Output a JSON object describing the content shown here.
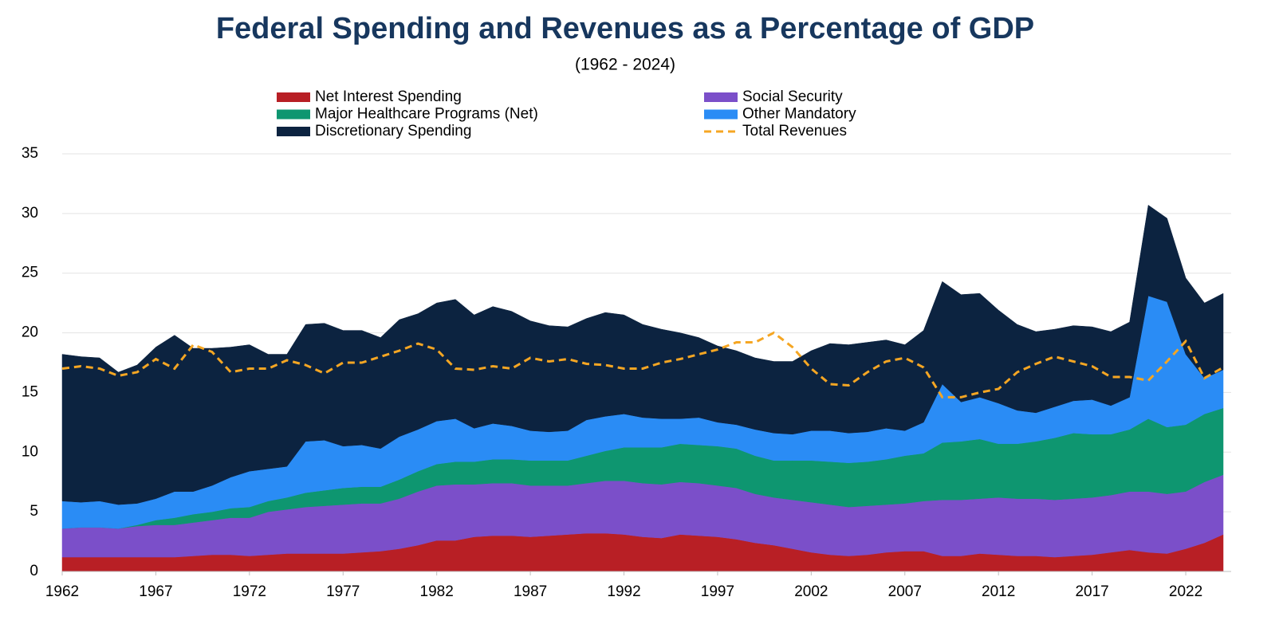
{
  "chart_data": {
    "type": "area",
    "stacked": true,
    "title": "Federal Spending and Revenues as a Percentage of GDP",
    "subtitle": "(1962 - 2024)",
    "x": [
      1962,
      1963,
      1964,
      1965,
      1966,
      1967,
      1968,
      1969,
      1970,
      1971,
      1972,
      1973,
      1974,
      1975,
      1976,
      1977,
      1978,
      1979,
      1980,
      1981,
      1982,
      1983,
      1984,
      1985,
      1986,
      1987,
      1988,
      1989,
      1990,
      1991,
      1992,
      1993,
      1994,
      1995,
      1996,
      1997,
      1998,
      1999,
      2000,
      2001,
      2002,
      2003,
      2004,
      2005,
      2006,
      2007,
      2008,
      2009,
      2010,
      2011,
      2012,
      2013,
      2014,
      2015,
      2016,
      2017,
      2018,
      2019,
      2020,
      2021,
      2022,
      2023,
      2024
    ],
    "xlim": [
      1962,
      2024
    ],
    "xticks": [
      1962,
      1967,
      1972,
      1977,
      1982,
      1987,
      1992,
      1997,
      2002,
      2007,
      2012,
      2017,
      2022
    ],
    "ylim": [
      0,
      35
    ],
    "yticks": [
      0,
      5,
      10,
      15,
      20,
      25,
      30,
      35
    ],
    "grid": true,
    "legend": "top",
    "series": [
      {
        "name": "Net Interest Spending",
        "color": "#b81f25",
        "values": [
          1.2,
          1.2,
          1.2,
          1.2,
          1.2,
          1.2,
          1.2,
          1.3,
          1.4,
          1.4,
          1.3,
          1.4,
          1.5,
          1.5,
          1.5,
          1.5,
          1.6,
          1.7,
          1.9,
          2.2,
          2.6,
          2.6,
          2.9,
          3.0,
          3.0,
          2.9,
          3.0,
          3.1,
          3.2,
          3.2,
          3.1,
          2.9,
          2.8,
          3.1,
          3.0,
          2.9,
          2.7,
          2.4,
          2.2,
          1.9,
          1.6,
          1.4,
          1.3,
          1.4,
          1.6,
          1.7,
          1.7,
          1.3,
          1.3,
          1.5,
          1.4,
          1.3,
          1.3,
          1.2,
          1.3,
          1.4,
          1.6,
          1.8,
          1.6,
          1.5,
          1.9,
          2.4,
          3.1
        ]
      },
      {
        "name": "Social Security",
        "color": "#7b4fc9",
        "values": [
          2.4,
          2.5,
          2.5,
          2.4,
          2.6,
          2.7,
          2.7,
          2.8,
          2.9,
          3.1,
          3.2,
          3.6,
          3.7,
          3.9,
          4.0,
          4.1,
          4.1,
          4.0,
          4.2,
          4.5,
          4.6,
          4.7,
          4.4,
          4.4,
          4.4,
          4.3,
          4.2,
          4.1,
          4.2,
          4.4,
          4.5,
          4.5,
          4.5,
          4.4,
          4.4,
          4.3,
          4.3,
          4.1,
          4.0,
          4.1,
          4.2,
          4.2,
          4.1,
          4.1,
          4.0,
          4.0,
          4.2,
          4.7,
          4.7,
          4.6,
          4.8,
          4.8,
          4.8,
          4.8,
          4.8,
          4.8,
          4.8,
          4.9,
          5.1,
          5.0,
          4.8,
          5.1,
          5.0
        ]
      },
      {
        "name": "Major Healthcare Programs (Net)",
        "color": "#0e9670",
        "values": [
          0,
          0,
          0,
          0,
          0.1,
          0.4,
          0.6,
          0.7,
          0.7,
          0.8,
          0.9,
          0.9,
          1.0,
          1.2,
          1.3,
          1.4,
          1.4,
          1.4,
          1.6,
          1.7,
          1.8,
          1.9,
          1.9,
          2.0,
          2.0,
          2.1,
          2.1,
          2.1,
          2.3,
          2.5,
          2.8,
          3.0,
          3.1,
          3.2,
          3.2,
          3.3,
          3.3,
          3.2,
          3.1,
          3.3,
          3.5,
          3.6,
          3.7,
          3.7,
          3.8,
          4.0,
          4.0,
          4.8,
          4.9,
          5.0,
          4.5,
          4.6,
          4.8,
          5.2,
          5.5,
          5.3,
          5.1,
          5.2,
          6.1,
          5.6,
          5.6,
          5.7,
          5.6
        ]
      },
      {
        "name": "Other Mandatory",
        "color": "#2a8cf5",
        "values": [
          2.3,
          2.1,
          2.2,
          2.0,
          1.8,
          1.8,
          2.2,
          1.9,
          2.2,
          2.6,
          3.0,
          2.7,
          2.6,
          4.3,
          4.2,
          3.5,
          3.5,
          3.2,
          3.6,
          3.5,
          3.6,
          3.6,
          2.8,
          3.0,
          2.8,
          2.5,
          2.4,
          2.5,
          3.0,
          2.9,
          2.8,
          2.5,
          2.4,
          2.1,
          2.3,
          2.0,
          2.0,
          2.2,
          2.3,
          2.2,
          2.5,
          2.6,
          2.5,
          2.5,
          2.6,
          2.1,
          2.6,
          4.9,
          3.3,
          3.5,
          3.4,
          2.8,
          2.4,
          2.6,
          2.7,
          2.9,
          2.4,
          2.7,
          10.3,
          10.5,
          5.9,
          3.0,
          3.2
        ]
      },
      {
        "name": "Discretionary Spending",
        "color": "#0c2340",
        "values": [
          12.3,
          12.2,
          12.0,
          11.1,
          11.6,
          12.7,
          13.1,
          12.0,
          11.5,
          10.9,
          10.6,
          9.6,
          9.4,
          9.8,
          9.8,
          9.7,
          9.6,
          9.3,
          9.8,
          9.7,
          9.9,
          10.0,
          9.5,
          9.8,
          9.6,
          9.2,
          8.9,
          8.7,
          8.5,
          8.7,
          8.3,
          7.8,
          7.5,
          7.2,
          6.7,
          6.4,
          6.2,
          6.0,
          6.0,
          6.1,
          6.7,
          7.3,
          7.4,
          7.5,
          7.4,
          7.2,
          7.7,
          8.6,
          9.0,
          8.7,
          7.8,
          7.2,
          6.8,
          6.5,
          6.3,
          6.1,
          6.2,
          6.3,
          7.6,
          7.0,
          6.4,
          6.3,
          6.4
        ]
      },
      {
        "name": "Total Revenues",
        "color": "#f5a623",
        "type": "line",
        "dash": true,
        "values": [
          17.0,
          17.2,
          17.0,
          16.4,
          16.7,
          17.8,
          17.0,
          19.0,
          18.4,
          16.7,
          17.0,
          17.0,
          17.7,
          17.3,
          16.6,
          17.5,
          17.5,
          18.0,
          18.5,
          19.1,
          18.6,
          17.0,
          16.9,
          17.2,
          17.0,
          17.9,
          17.6,
          17.8,
          17.4,
          17.3,
          17.0,
          17.0,
          17.5,
          17.8,
          18.2,
          18.6,
          19.2,
          19.2,
          20.0,
          18.8,
          17.0,
          15.7,
          15.6,
          16.7,
          17.6,
          17.9,
          17.1,
          14.6,
          14.6,
          15.0,
          15.3,
          16.7,
          17.4,
          18.0,
          17.6,
          17.2,
          16.3,
          16.3,
          16.0,
          17.6,
          19.3,
          16.2,
          17.1
        ]
      }
    ]
  }
}
